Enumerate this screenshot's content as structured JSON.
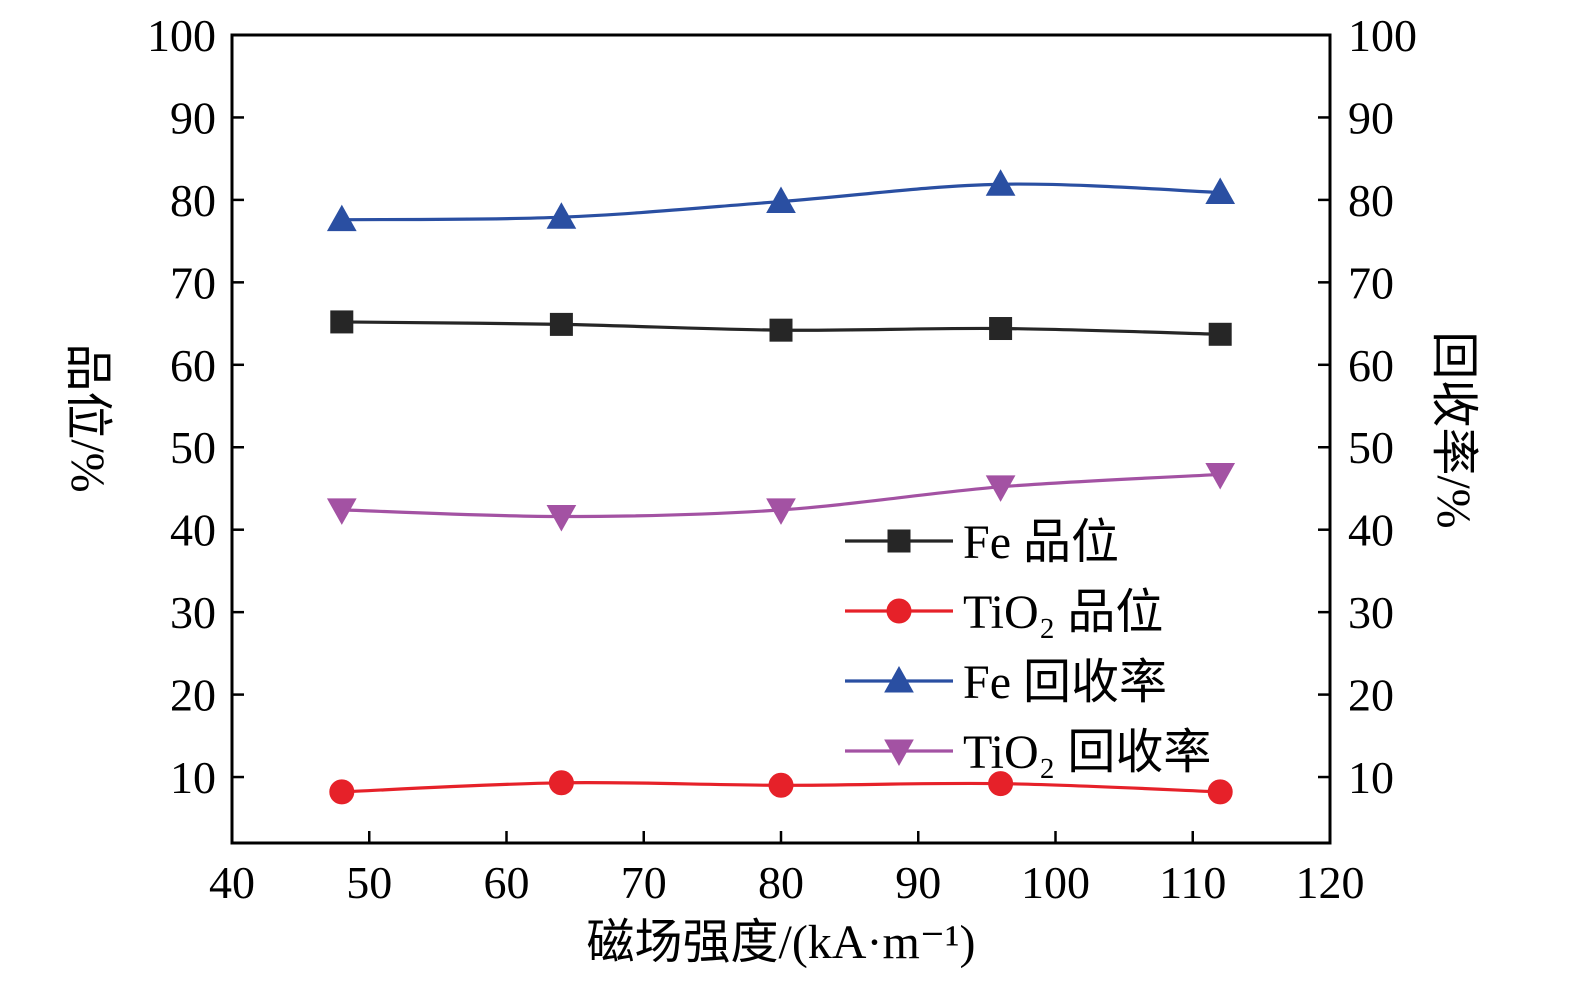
{
  "figure": {
    "background": "#ffffff",
    "frame_color": "#000000"
  },
  "chart_data": {
    "type": "line",
    "x": [
      48,
      64,
      80,
      96,
      112
    ],
    "series": [
      {
        "name": "Fe 品位",
        "axis": "left",
        "color": "#262626",
        "marker": "square",
        "values": [
          65.2,
          64.9,
          64.2,
          64.4,
          63.7
        ]
      },
      {
        "name": "TiO₂ 品位",
        "axis": "left",
        "color": "#e62129",
        "marker": "circle",
        "values": [
          8.2,
          9.3,
          9.0,
          9.2,
          8.2
        ]
      },
      {
        "name": "Fe 回收率",
        "axis": "right",
        "color": "#2a4fa2",
        "marker": "triangle-up",
        "values": [
          77.6,
          77.9,
          79.8,
          81.9,
          80.9
        ]
      },
      {
        "name": "TiO₂ 回收率",
        "axis": "right",
        "color": "#a352a3",
        "marker": "triangle-down",
        "values": [
          42.4,
          41.6,
          42.4,
          45.2,
          46.7
        ]
      }
    ],
    "title": "",
    "xlabel": "磁场强度/(kA·m⁻¹)",
    "ylabel_left": "品位/%",
    "ylabel_right": "回收率/%",
    "xlim": [
      40,
      120
    ],
    "ylim": [
      2,
      100
    ],
    "xticks": [
      40,
      50,
      60,
      70,
      80,
      90,
      100,
      110,
      120
    ],
    "yticks": [
      10,
      20,
      30,
      40,
      50,
      60,
      70,
      80,
      90,
      100
    ],
    "grid": false,
    "legend_position": "inside-lower-right"
  }
}
